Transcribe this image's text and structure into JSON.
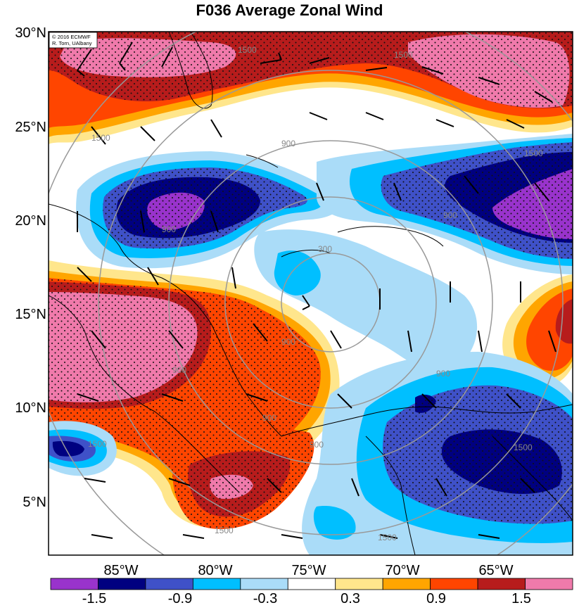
{
  "title": "F036 Average Zonal Wind",
  "credits": [
    "© 2016 ECMWF",
    "R. Torn, UAlbany"
  ],
  "lat_labels": [
    "30°N",
    "25°N",
    "20°N",
    "15°N",
    "10°N",
    "5°N"
  ],
  "lon_labels": [
    "85°W",
    "80°W",
    "75°W",
    "70°W",
    "65°W"
  ],
  "colorbar_labels": [
    "-1.5",
    "-0.9",
    "-0.3",
    "0.3",
    "0.9",
    "1.5"
  ],
  "colorbar_colors": [
    "#9933cc",
    "#000080",
    "#3f51c8",
    "#00bfff",
    "#aadcf8",
    "#ffffff",
    "#ffe68c",
    "#ffa500",
    "#ff4500",
    "#b71c1c",
    "#f07aab"
  ],
  "contour_labels": [
    "1500",
    "1500",
    "1500",
    "1500",
    "900",
    "900",
    "900",
    "900",
    "900",
    "900",
    "300",
    "900",
    "900",
    "1500",
    "1500",
    "1500",
    "1500"
  ]
}
